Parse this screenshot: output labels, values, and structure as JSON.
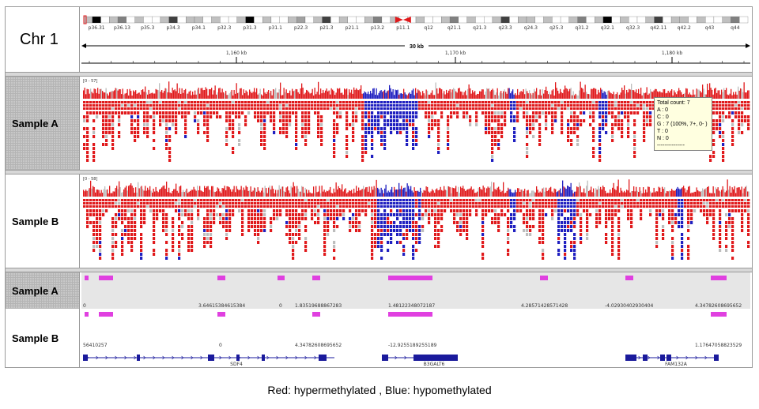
{
  "chromosome": "Chr 1",
  "cytobands": [
    "p36.31",
    "p36.13",
    "p35.3",
    "p34.3",
    "p34.1",
    "p32.3",
    "p31.3",
    "p31.1",
    "p22.3",
    "p21.3",
    "p21.1",
    "p13.2",
    "p11.1",
    "q12",
    "q21.1",
    "q21.3",
    "q23.3",
    "q24.3",
    "q25.3",
    "q31.2",
    "q32.1",
    "q32.3",
    "q42.11",
    "q42.2",
    "q43",
    "q44"
  ],
  "ruler": {
    "span": "30 kb",
    "ticks": [
      "1,160 kb",
      "1,170 kb",
      "1,180 kb"
    ]
  },
  "tracks": [
    {
      "label": "Sample A",
      "range": "[0 - 57]"
    },
    {
      "label": "Sample B",
      "range": "[0 - 58]"
    }
  ],
  "tooltip": {
    "lines": [
      "Total count: 7",
      "A : 0",
      "C : 0",
      "G : 7 (100%, 7+, 0- )",
      "T : 0",
      "N : 0",
      "---------------"
    ]
  },
  "feature_tracks": [
    {
      "label": "Sample A",
      "values": [
        "0",
        "3.64615384615384",
        "0",
        "1.83519688867283",
        "1.48122348072187",
        "4.28571428571428",
        "-4.02930402930404",
        "4.34782608695652"
      ]
    },
    {
      "label": "Sample B",
      "values": [
        "56410257",
        "0",
        "4.34782608695652",
        "-12.9255189255189",
        "1.17647058823529"
      ]
    }
  ],
  "genes": [
    "SDF4",
    "B3GALT6",
    "FAM132A"
  ],
  "colors": {
    "hyper": "#e0191b",
    "hypo": "#1f1fc0",
    "grey": "#bdbdbd",
    "feature": "#e040e0",
    "gene": "#1a1a9c"
  },
  "caption": "Red: hypermethylated , Blue: hypomethylated"
}
